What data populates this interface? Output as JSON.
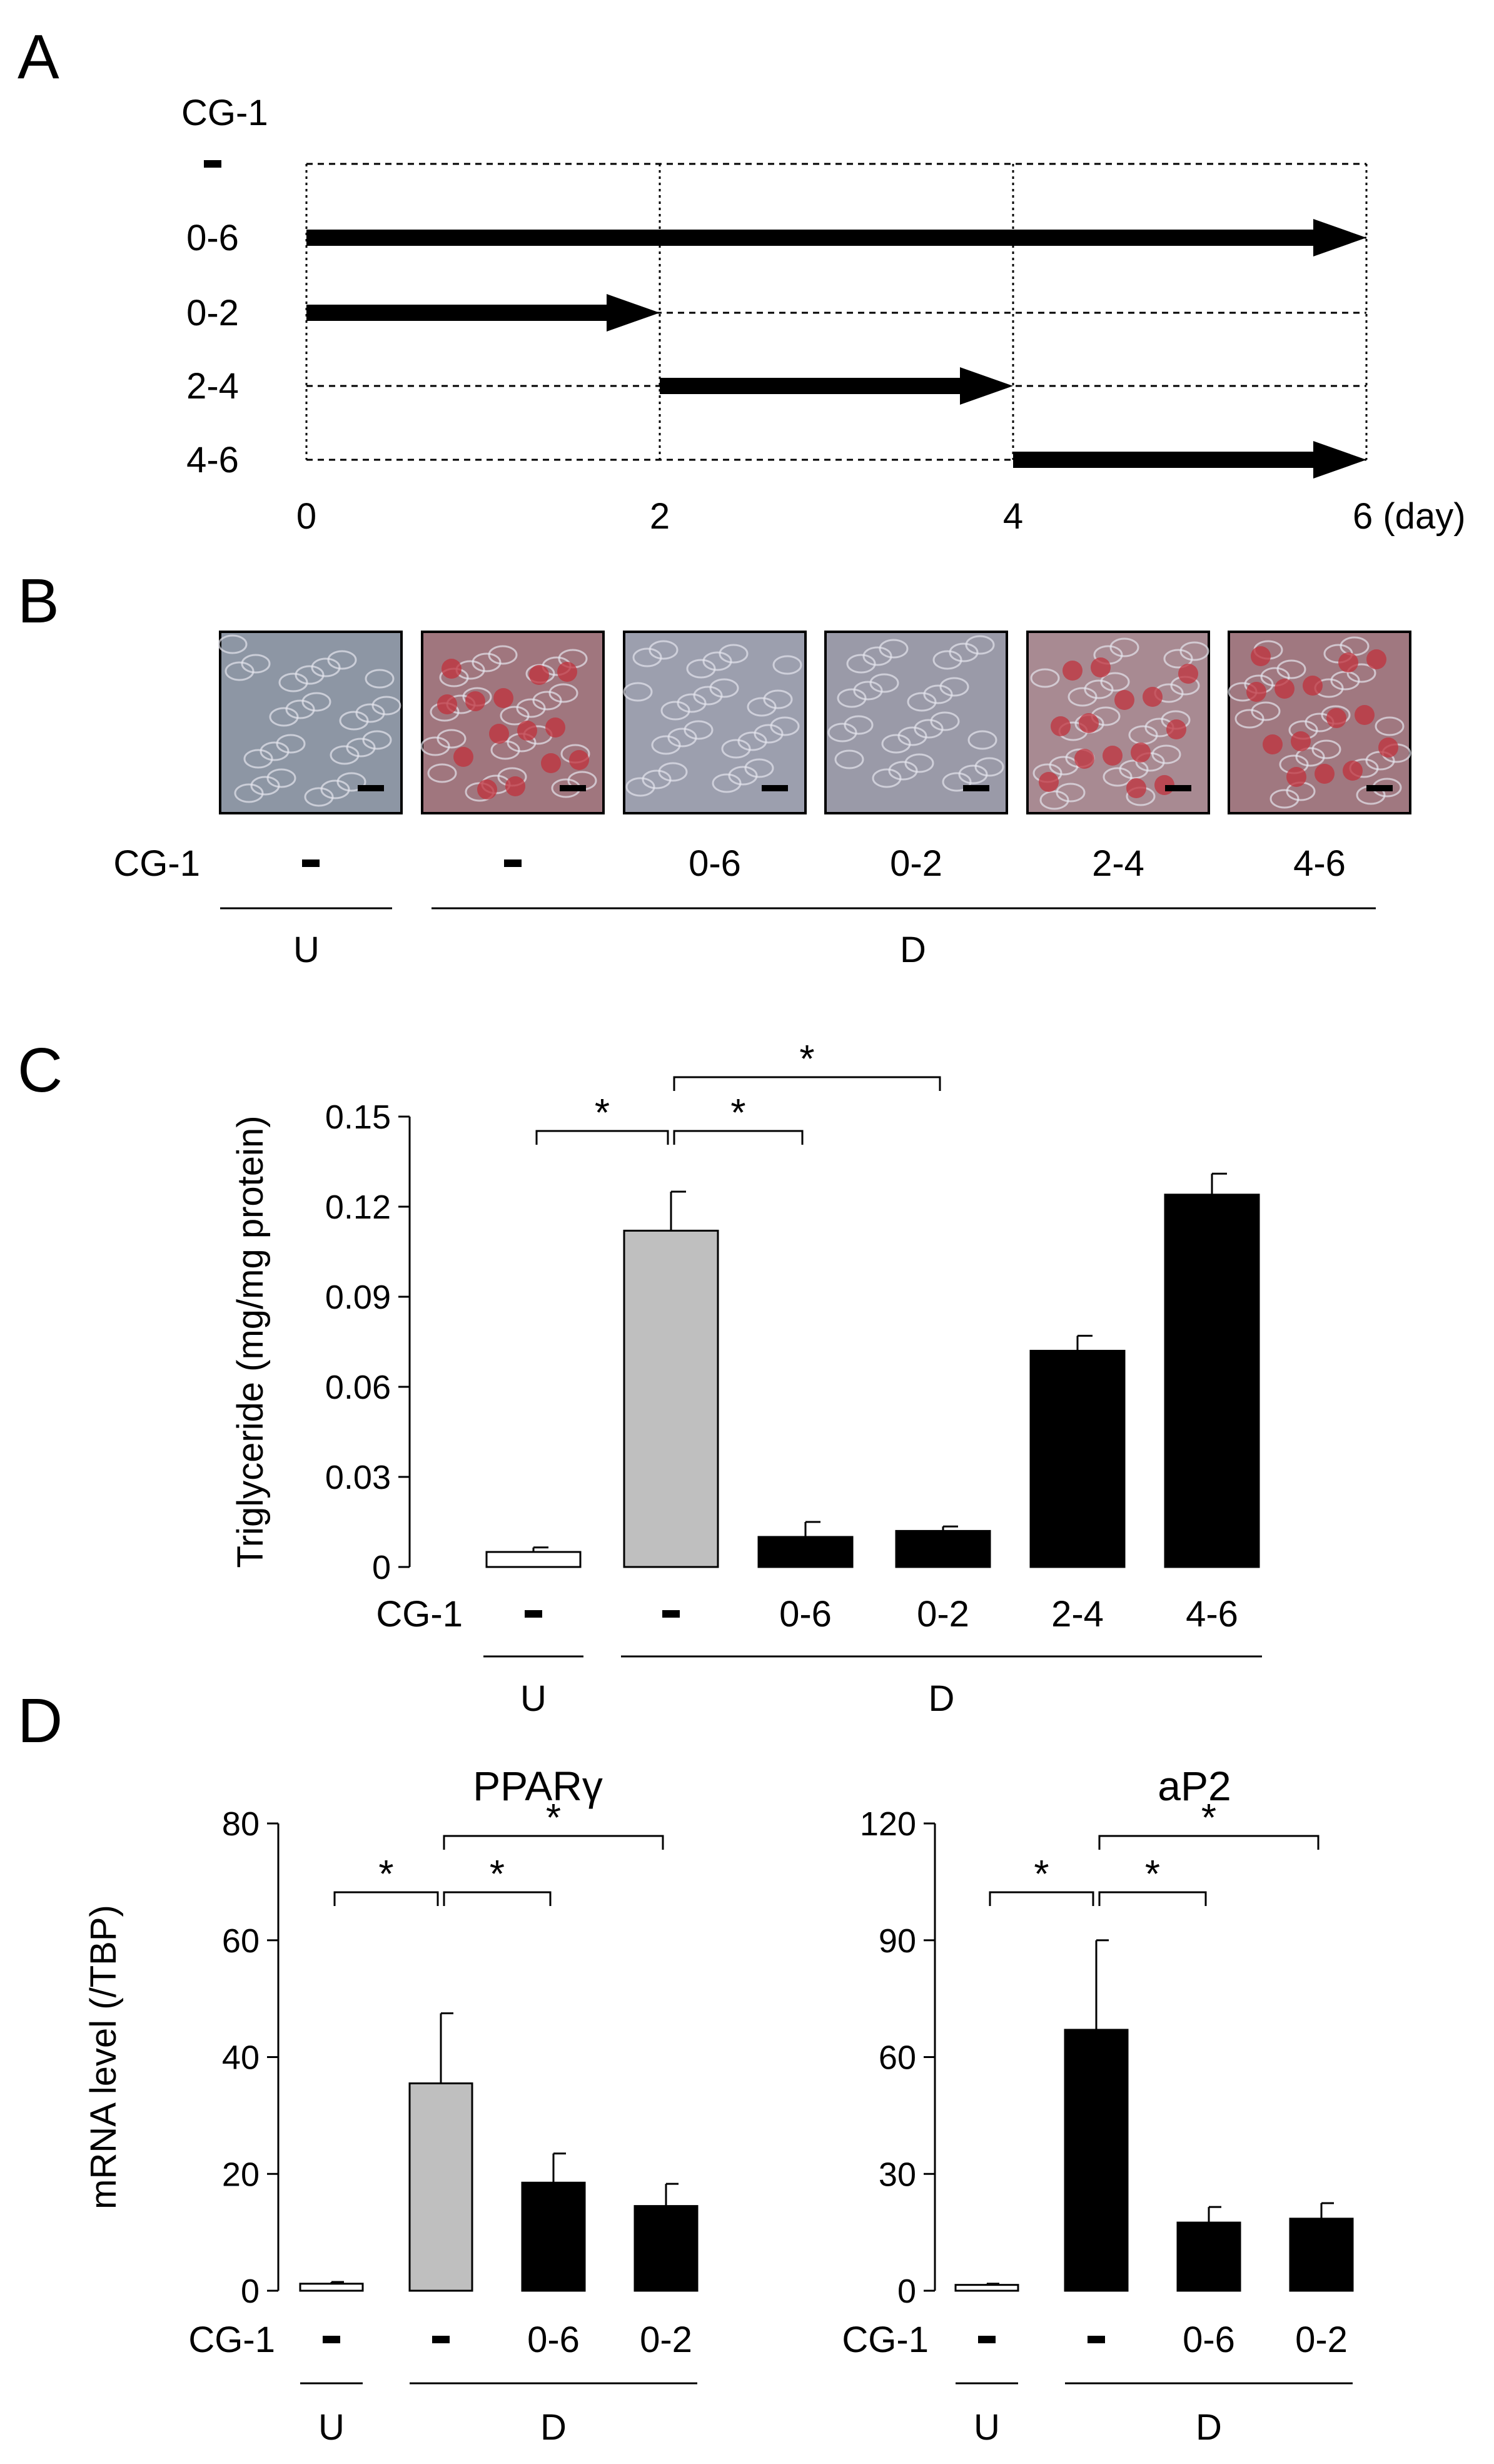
{
  "panel_labels": [
    "A",
    "B",
    "C",
    "D"
  ],
  "panel_a": {
    "treatment_label": "CG-1",
    "rows": [
      {
        "label": "-",
        "start": null,
        "end": null
      },
      {
        "label": "0-6",
        "start": 0,
        "end": 6
      },
      {
        "label": "0-2",
        "start": 0,
        "end": 2
      },
      {
        "label": "2-4",
        "start": 2,
        "end": 4
      },
      {
        "label": "4-6",
        "start": 4,
        "end": 6
      }
    ],
    "days": [
      0,
      2,
      4,
      6
    ],
    "day_tick_labels": [
      "0",
      "2",
      "4",
      "6 (day)"
    ]
  },
  "panel_b": {
    "treatment_label": "CG-1",
    "images": [
      {
        "treatment": "-",
        "group": "U",
        "stain": "light",
        "color": "#8d96a4"
      },
      {
        "treatment": "-",
        "group": "D",
        "stain": "heavy",
        "color": "#a0767e"
      },
      {
        "treatment": "0-6",
        "group": "D",
        "stain": "light",
        "color": "#9c9fae"
      },
      {
        "treatment": "0-2",
        "group": "D",
        "stain": "light",
        "color": "#9a9aa8"
      },
      {
        "treatment": "2-4",
        "group": "D",
        "stain": "heavy",
        "color": "#a88a92"
      },
      {
        "treatment": "4-6",
        "group": "D",
        "stain": "heavy",
        "color": "#a07880"
      }
    ],
    "groups": [
      "U",
      "D"
    ]
  },
  "chart_data": [
    {
      "type": "bar",
      "panel": "C",
      "ylabel": "Triglyceride (mg/mg protein)",
      "ylim": [
        0,
        0.15
      ],
      "yticks": [
        "0",
        "0.03",
        "0.06",
        "0.09",
        "0.12",
        "0.15"
      ],
      "categories": [
        "-",
        "-",
        "0-6",
        "0-2",
        "2-4",
        "4-6"
      ],
      "category_prefix": "CG-1",
      "values": [
        0.005,
        0.112,
        0.01,
        0.012,
        0.072,
        0.124
      ],
      "errors": [
        0.0015,
        0.013,
        0.005,
        0.0015,
        0.005,
        0.007
      ],
      "fills": [
        "#ffffff",
        "#bfbfbf",
        "#000000",
        "#000000",
        "#000000",
        "#000000"
      ],
      "groups": [
        {
          "label": "U",
          "from": 0,
          "to": 0
        },
        {
          "label": "D",
          "from": 1,
          "to": 5
        }
      ],
      "significance": [
        {
          "from": 0,
          "to": 1,
          "label": "*"
        },
        {
          "from": 1,
          "to": 2,
          "label": "*"
        },
        {
          "from": 1,
          "to": 3,
          "label": "*"
        }
      ]
    },
    {
      "type": "bar",
      "panel": "D",
      "title": "PPARγ",
      "ylabel": "mRNA level (/TBP)",
      "ylim": [
        0,
        80
      ],
      "yticks": [
        "0",
        "20",
        "40",
        "60",
        "80"
      ],
      "categories": [
        "-",
        "-",
        "0-6",
        "0-2"
      ],
      "category_prefix": "CG-1",
      "values": [
        1.2,
        35.5,
        18.5,
        14.5
      ],
      "errors": [
        0.3,
        12.0,
        5.0,
        3.8
      ],
      "fills": [
        "#ffffff",
        "#bfbfbf",
        "#000000",
        "#000000"
      ],
      "groups": [
        {
          "label": "U",
          "from": 0,
          "to": 0
        },
        {
          "label": "D",
          "from": 1,
          "to": 3
        }
      ],
      "significance": [
        {
          "from": 0,
          "to": 1,
          "label": "*"
        },
        {
          "from": 1,
          "to": 2,
          "label": "*"
        },
        {
          "from": 1,
          "to": 3,
          "label": "*"
        }
      ]
    },
    {
      "type": "bar",
      "panel": "D",
      "title": "aP2",
      "ylabel": "",
      "ylim": [
        0,
        120
      ],
      "yticks": [
        "0",
        "30",
        "60",
        "90",
        "120"
      ],
      "categories": [
        "-",
        "-",
        "0-6",
        "0-2"
      ],
      "category_prefix": "CG-1",
      "values": [
        1.5,
        67.0,
        17.5,
        18.5
      ],
      "errors": [
        0.3,
        23.0,
        4.0,
        4.0
      ],
      "fills": [
        "#ffffff",
        "#000000",
        "#000000",
        "#000000"
      ],
      "groups": [
        {
          "label": "U",
          "from": 0,
          "to": 0
        },
        {
          "label": "D",
          "from": 1,
          "to": 3
        }
      ],
      "significance": [
        {
          "from": 0,
          "to": 1,
          "label": "*"
        },
        {
          "from": 1,
          "to": 2,
          "label": "*"
        },
        {
          "from": 1,
          "to": 3,
          "label": "*"
        }
      ]
    }
  ]
}
